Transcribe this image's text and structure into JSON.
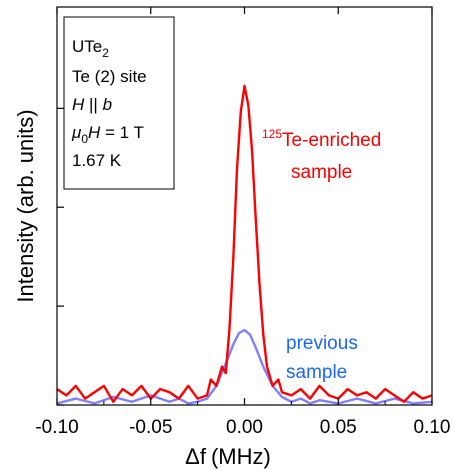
{
  "chart_data": {
    "type": "line",
    "xlabel_symbol": "Δf",
    "xlabel_unit": "(MHz)",
    "ylabel": "Intensity (arb. units)",
    "xlim": [
      -0.1,
      0.1
    ],
    "ylim": [
      0,
      1.0
    ],
    "x_tick_labels": [
      "-0.10",
      "-0.05",
      "0.00",
      "0.05",
      "0.10"
    ],
    "x_ticks": [
      -0.1,
      -0.05,
      0.0,
      0.05,
      0.1
    ],
    "y_ticks": [
      0.0,
      0.31,
      0.62,
      0.93
    ],
    "grid": false,
    "info_box": {
      "line1_base": "UTe",
      "line1_sub": "2",
      "line2": "Te (2) site",
      "line3_a": "H",
      "line3_b": " || ",
      "line3_c": "b",
      "line4_mu": "μ",
      "line4_sub": "0",
      "line4_H": "H",
      "line4_rest": " = 1 T",
      "line5": "1.67 K"
    },
    "annotations": {
      "enriched_sup": "125",
      "enriched_line1": "Te-enriched",
      "enriched_line2": "sample",
      "previous_line1": "previous",
      "previous_line2": "sample"
    },
    "series": [
      {
        "color": "#ff0000",
        "x": [
          -0.1,
          -0.095,
          -0.09,
          -0.085,
          -0.08,
          -0.075,
          -0.07,
          -0.065,
          -0.06,
          -0.055,
          -0.05,
          -0.045,
          -0.04,
          -0.035,
          -0.03,
          -0.025,
          -0.02,
          -0.018,
          -0.015,
          -0.012,
          -0.01,
          -0.008,
          -0.006,
          -0.004,
          -0.002,
          0.0,
          0.002,
          0.004,
          0.006,
          0.008,
          0.01,
          0.012,
          0.015,
          0.018,
          0.02,
          0.025,
          0.03,
          0.035,
          0.04,
          0.045,
          0.05,
          0.055,
          0.06,
          0.065,
          0.07,
          0.075,
          0.08,
          0.085,
          0.09,
          0.095,
          0.1
        ],
        "y": [
          0.05,
          0.03,
          0.06,
          0.02,
          0.04,
          0.06,
          0.01,
          0.05,
          0.03,
          0.06,
          0.02,
          0.05,
          0.04,
          0.02,
          0.06,
          0.02,
          0.03,
          0.08,
          0.06,
          0.12,
          0.1,
          0.24,
          0.46,
          0.74,
          0.92,
          1.0,
          0.94,
          0.8,
          0.58,
          0.38,
          0.22,
          0.12,
          0.06,
          0.08,
          0.04,
          0.03,
          0.05,
          0.02,
          0.06,
          0.03,
          0.02,
          0.05,
          0.03,
          0.04,
          0.02,
          0.05,
          0.03,
          0.01,
          0.04,
          0.02,
          0.03
        ]
      },
      {
        "color": "#8080ff",
        "x": [
          -0.1,
          -0.09,
          -0.08,
          -0.07,
          -0.06,
          -0.05,
          -0.04,
          -0.035,
          -0.03,
          -0.025,
          -0.02,
          -0.015,
          -0.01,
          -0.006,
          -0.003,
          0.0,
          0.003,
          0.006,
          0.01,
          0.015,
          0.02,
          0.025,
          0.03,
          0.035,
          0.04,
          0.05,
          0.06,
          0.07,
          0.08,
          0.09,
          0.1
        ],
        "y": [
          0.005,
          0.02,
          0.005,
          0.025,
          0.01,
          0.03,
          0.01,
          0.02,
          0.005,
          0.01,
          0.02,
          0.06,
          0.13,
          0.19,
          0.225,
          0.235,
          0.22,
          0.18,
          0.12,
          0.06,
          0.025,
          0.01,
          0.02,
          0.005,
          0.015,
          0.005,
          0.02,
          0.005,
          0.02,
          0.005,
          0.01
        ]
      }
    ]
  }
}
